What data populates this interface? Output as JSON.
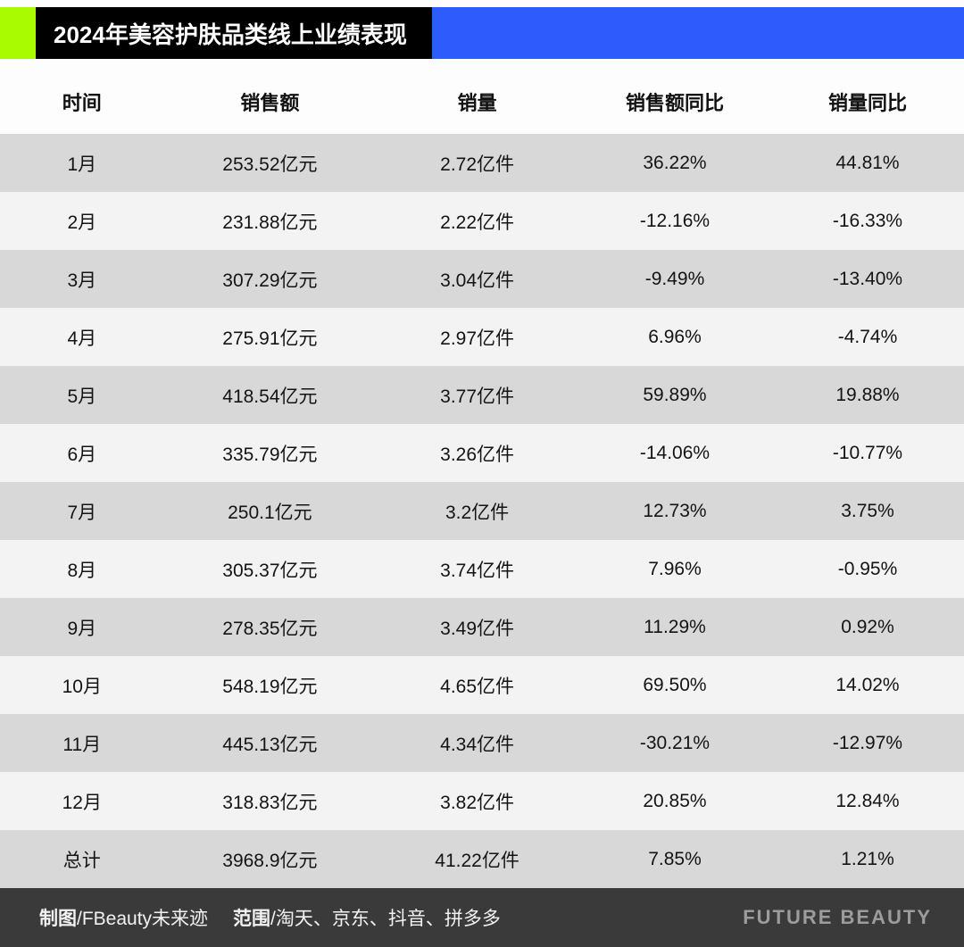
{
  "header": {
    "title": "2024年美容护肤品类线上业绩表现"
  },
  "colors": {
    "accent_green": "#a8fb00",
    "accent_blue": "#2e5bfb",
    "title_bar_black": "#000000",
    "row_gray": "#d8d8d8",
    "row_light": "#f3f3f3",
    "footer_bg": "#3a3a3a",
    "brand_gray": "#9c9c9c"
  },
  "chart_data": {
    "type": "table",
    "title": "2024年美容护肤品类线上业绩表现",
    "columns": [
      "时间",
      "销售额",
      "销量",
      "销售额同比",
      "销量同比"
    ],
    "rows": [
      [
        "1月",
        "253.52亿元",
        "2.72亿件",
        "36.22%",
        "44.81%"
      ],
      [
        "2月",
        "231.88亿元",
        "2.22亿件",
        "-12.16%",
        "-16.33%"
      ],
      [
        "3月",
        "307.29亿元",
        "3.04亿件",
        "-9.49%",
        "-13.40%"
      ],
      [
        "4月",
        "275.91亿元",
        "2.97亿件",
        "6.96%",
        "-4.74%"
      ],
      [
        "5月",
        "418.54亿元",
        "3.77亿件",
        "59.89%",
        "19.88%"
      ],
      [
        "6月",
        "335.79亿元",
        "3.26亿件",
        "-14.06%",
        "-10.77%"
      ],
      [
        "7月",
        "250.1亿元",
        "3.2亿件",
        "12.73%",
        "3.75%"
      ],
      [
        "8月",
        "305.37亿元",
        "3.74亿件",
        "7.96%",
        "-0.95%"
      ],
      [
        "9月",
        "278.35亿元",
        "3.49亿件",
        "11.29%",
        "0.92%"
      ],
      [
        "10月",
        "548.19亿元",
        "4.65亿件",
        "69.50%",
        "14.02%"
      ],
      [
        "11月",
        "445.13亿元",
        "4.34亿件",
        "-30.21%",
        "-12.97%"
      ],
      [
        "12月",
        "318.83亿元",
        "3.82亿件",
        "20.85%",
        "12.84%"
      ],
      [
        "总计",
        "3968.9亿元",
        "41.22亿件",
        "7.85%",
        "1.21%"
      ]
    ]
  },
  "footer": {
    "credit_bold": "制图",
    "credit_rest": "/FBeauty未来迹",
    "scope_bold": "范围",
    "scope_rest": "/淘天、京东、抖音、拼多多",
    "brand": "FUTURE BEAUTY"
  }
}
